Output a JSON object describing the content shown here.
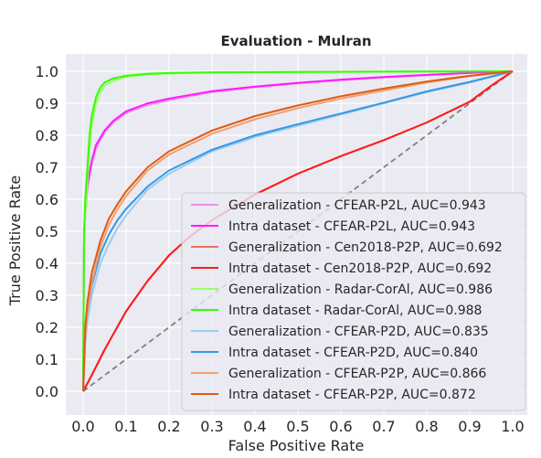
{
  "chart_data": {
    "type": "line",
    "title": "Evaluation - Mulran",
    "xlabel": "False Positive Rate",
    "ylabel": "True Positive Rate",
    "xlim": [
      0,
      1
    ],
    "ylim": [
      0,
      1
    ],
    "x_ticks": [
      "0.0",
      "0.1",
      "0.2",
      "0.3",
      "0.4",
      "0.5",
      "0.6",
      "0.7",
      "0.8",
      "0.9",
      "1.0"
    ],
    "y_ticks": [
      "0.0",
      "0.1",
      "0.2",
      "0.3",
      "0.4",
      "0.5",
      "0.6",
      "0.7",
      "0.8",
      "0.9",
      "1.0"
    ],
    "grid": true,
    "legend_position": "lower-right",
    "background": "#eaeaf2",
    "diagonal_reference": {
      "x": [
        0,
        1
      ],
      "y": [
        0,
        1
      ],
      "color": "#808080",
      "style": "dashed"
    },
    "series": [
      {
        "name": "Generalization - CFEAR-P2L, AUC=0.943",
        "color": "#f08cf0",
        "x": [
          0,
          0.002,
          0.005,
          0.01,
          0.02,
          0.03,
          0.05,
          0.07,
          0.1,
          0.15,
          0.2,
          0.3,
          0.4,
          0.5,
          0.6,
          0.7,
          0.8,
          0.9,
          1.0
        ],
        "y": [
          0,
          0.45,
          0.55,
          0.63,
          0.71,
          0.76,
          0.81,
          0.84,
          0.87,
          0.895,
          0.91,
          0.935,
          0.95,
          0.962,
          0.972,
          0.981,
          0.988,
          0.995,
          1.0
        ]
      },
      {
        "name": "Intra dataset - CFEAR-P2L, AUC=0.943",
        "color": "#ff1aff",
        "x": [
          0,
          0.002,
          0.005,
          0.01,
          0.02,
          0.03,
          0.05,
          0.07,
          0.1,
          0.15,
          0.2,
          0.3,
          0.4,
          0.5,
          0.6,
          0.7,
          0.8,
          0.9,
          1.0
        ],
        "y": [
          0,
          0.47,
          0.57,
          0.65,
          0.72,
          0.77,
          0.815,
          0.845,
          0.875,
          0.9,
          0.915,
          0.938,
          0.952,
          0.964,
          0.974,
          0.982,
          0.989,
          0.995,
          1.0
        ]
      },
      {
        "name": "Generalization - Cen2018-P2P, AUC=0.692",
        "color": "#f07060",
        "x": [
          0,
          0.02,
          0.05,
          0.1,
          0.15,
          0.2,
          0.25,
          0.3,
          0.4,
          0.5,
          0.6,
          0.7,
          0.8,
          0.9,
          0.95,
          1.0
        ],
        "y": [
          0,
          0.05,
          0.13,
          0.25,
          0.345,
          0.425,
          0.485,
          0.535,
          0.615,
          0.68,
          0.735,
          0.785,
          0.84,
          0.905,
          0.955,
          1.0
        ]
      },
      {
        "name": "Intra dataset - Cen2018-P2P, AUC=0.692",
        "color": "#ff1a1a",
        "x": [
          0,
          0.02,
          0.05,
          0.1,
          0.15,
          0.2,
          0.25,
          0.3,
          0.4,
          0.5,
          0.6,
          0.7,
          0.8,
          0.9,
          0.95,
          1.0
        ],
        "y": [
          0,
          0.05,
          0.13,
          0.25,
          0.345,
          0.425,
          0.485,
          0.535,
          0.615,
          0.68,
          0.735,
          0.785,
          0.84,
          0.905,
          0.955,
          1.0
        ]
      },
      {
        "name": "Generalization - Radar-CorAl, AUC=0.986",
        "color": "#99ff66",
        "x": [
          0,
          0.002,
          0.005,
          0.01,
          0.015,
          0.02,
          0.03,
          0.04,
          0.05,
          0.07,
          0.1,
          0.15,
          0.2,
          0.3,
          0.5,
          0.7,
          1.0
        ],
        "y": [
          0,
          0.45,
          0.55,
          0.66,
          0.76,
          0.83,
          0.9,
          0.935,
          0.955,
          0.97,
          0.982,
          0.99,
          0.993,
          0.996,
          0.998,
          0.999,
          1.0
        ]
      },
      {
        "name": "Intra dataset - Radar-CorAl, AUC=0.988",
        "color": "#33ff00",
        "x": [
          0,
          0.002,
          0.005,
          0.01,
          0.015,
          0.02,
          0.03,
          0.04,
          0.05,
          0.07,
          0.1,
          0.15,
          0.2,
          0.3,
          0.5,
          0.7,
          1.0
        ],
        "y": [
          0,
          0.5,
          0.6,
          0.7,
          0.8,
          0.86,
          0.92,
          0.95,
          0.965,
          0.978,
          0.986,
          0.992,
          0.995,
          0.997,
          0.998,
          0.999,
          1.0
        ]
      },
      {
        "name": "Generalization - CFEAR-P2D, AUC=0.835",
        "color": "#99ccf0",
        "x": [
          0,
          0.005,
          0.01,
          0.02,
          0.04,
          0.06,
          0.08,
          0.1,
          0.15,
          0.2,
          0.3,
          0.4,
          0.5,
          0.6,
          0.7,
          0.8,
          0.9,
          1.0
        ],
        "y": [
          0,
          0.15,
          0.22,
          0.3,
          0.4,
          0.46,
          0.51,
          0.55,
          0.63,
          0.68,
          0.75,
          0.795,
          0.83,
          0.865,
          0.9,
          0.935,
          0.965,
          1.0
        ]
      },
      {
        "name": "Intra dataset - CFEAR-P2D, AUC=0.840",
        "color": "#3399e6",
        "x": [
          0,
          0.005,
          0.01,
          0.02,
          0.04,
          0.06,
          0.08,
          0.1,
          0.15,
          0.2,
          0.3,
          0.4,
          0.5,
          0.6,
          0.7,
          0.8,
          0.9,
          1.0
        ],
        "y": [
          0,
          0.18,
          0.25,
          0.33,
          0.43,
          0.49,
          0.535,
          0.57,
          0.64,
          0.69,
          0.755,
          0.8,
          0.835,
          0.868,
          0.902,
          0.937,
          0.967,
          1.0
        ]
      },
      {
        "name": "Generalization - CFEAR-P2P, AUC=0.866",
        "color": "#f0a070",
        "x": [
          0,
          0.005,
          0.01,
          0.02,
          0.04,
          0.06,
          0.08,
          0.1,
          0.15,
          0.2,
          0.3,
          0.4,
          0.5,
          0.6,
          0.7,
          0.8,
          0.9,
          1.0
        ],
        "y": [
          0,
          0.17,
          0.25,
          0.34,
          0.45,
          0.52,
          0.57,
          0.61,
          0.69,
          0.74,
          0.805,
          0.85,
          0.885,
          0.915,
          0.94,
          0.965,
          0.985,
          1.0
        ]
      },
      {
        "name": "Intra dataset - CFEAR-P2P, AUC=0.872",
        "color": "#e05a10",
        "x": [
          0,
          0.005,
          0.01,
          0.02,
          0.04,
          0.06,
          0.08,
          0.1,
          0.15,
          0.2,
          0.3,
          0.4,
          0.5,
          0.6,
          0.7,
          0.8,
          0.9,
          1.0
        ],
        "y": [
          0,
          0.2,
          0.28,
          0.37,
          0.47,
          0.54,
          0.585,
          0.625,
          0.7,
          0.75,
          0.815,
          0.86,
          0.893,
          0.922,
          0.946,
          0.968,
          0.986,
          1.0
        ]
      }
    ]
  }
}
